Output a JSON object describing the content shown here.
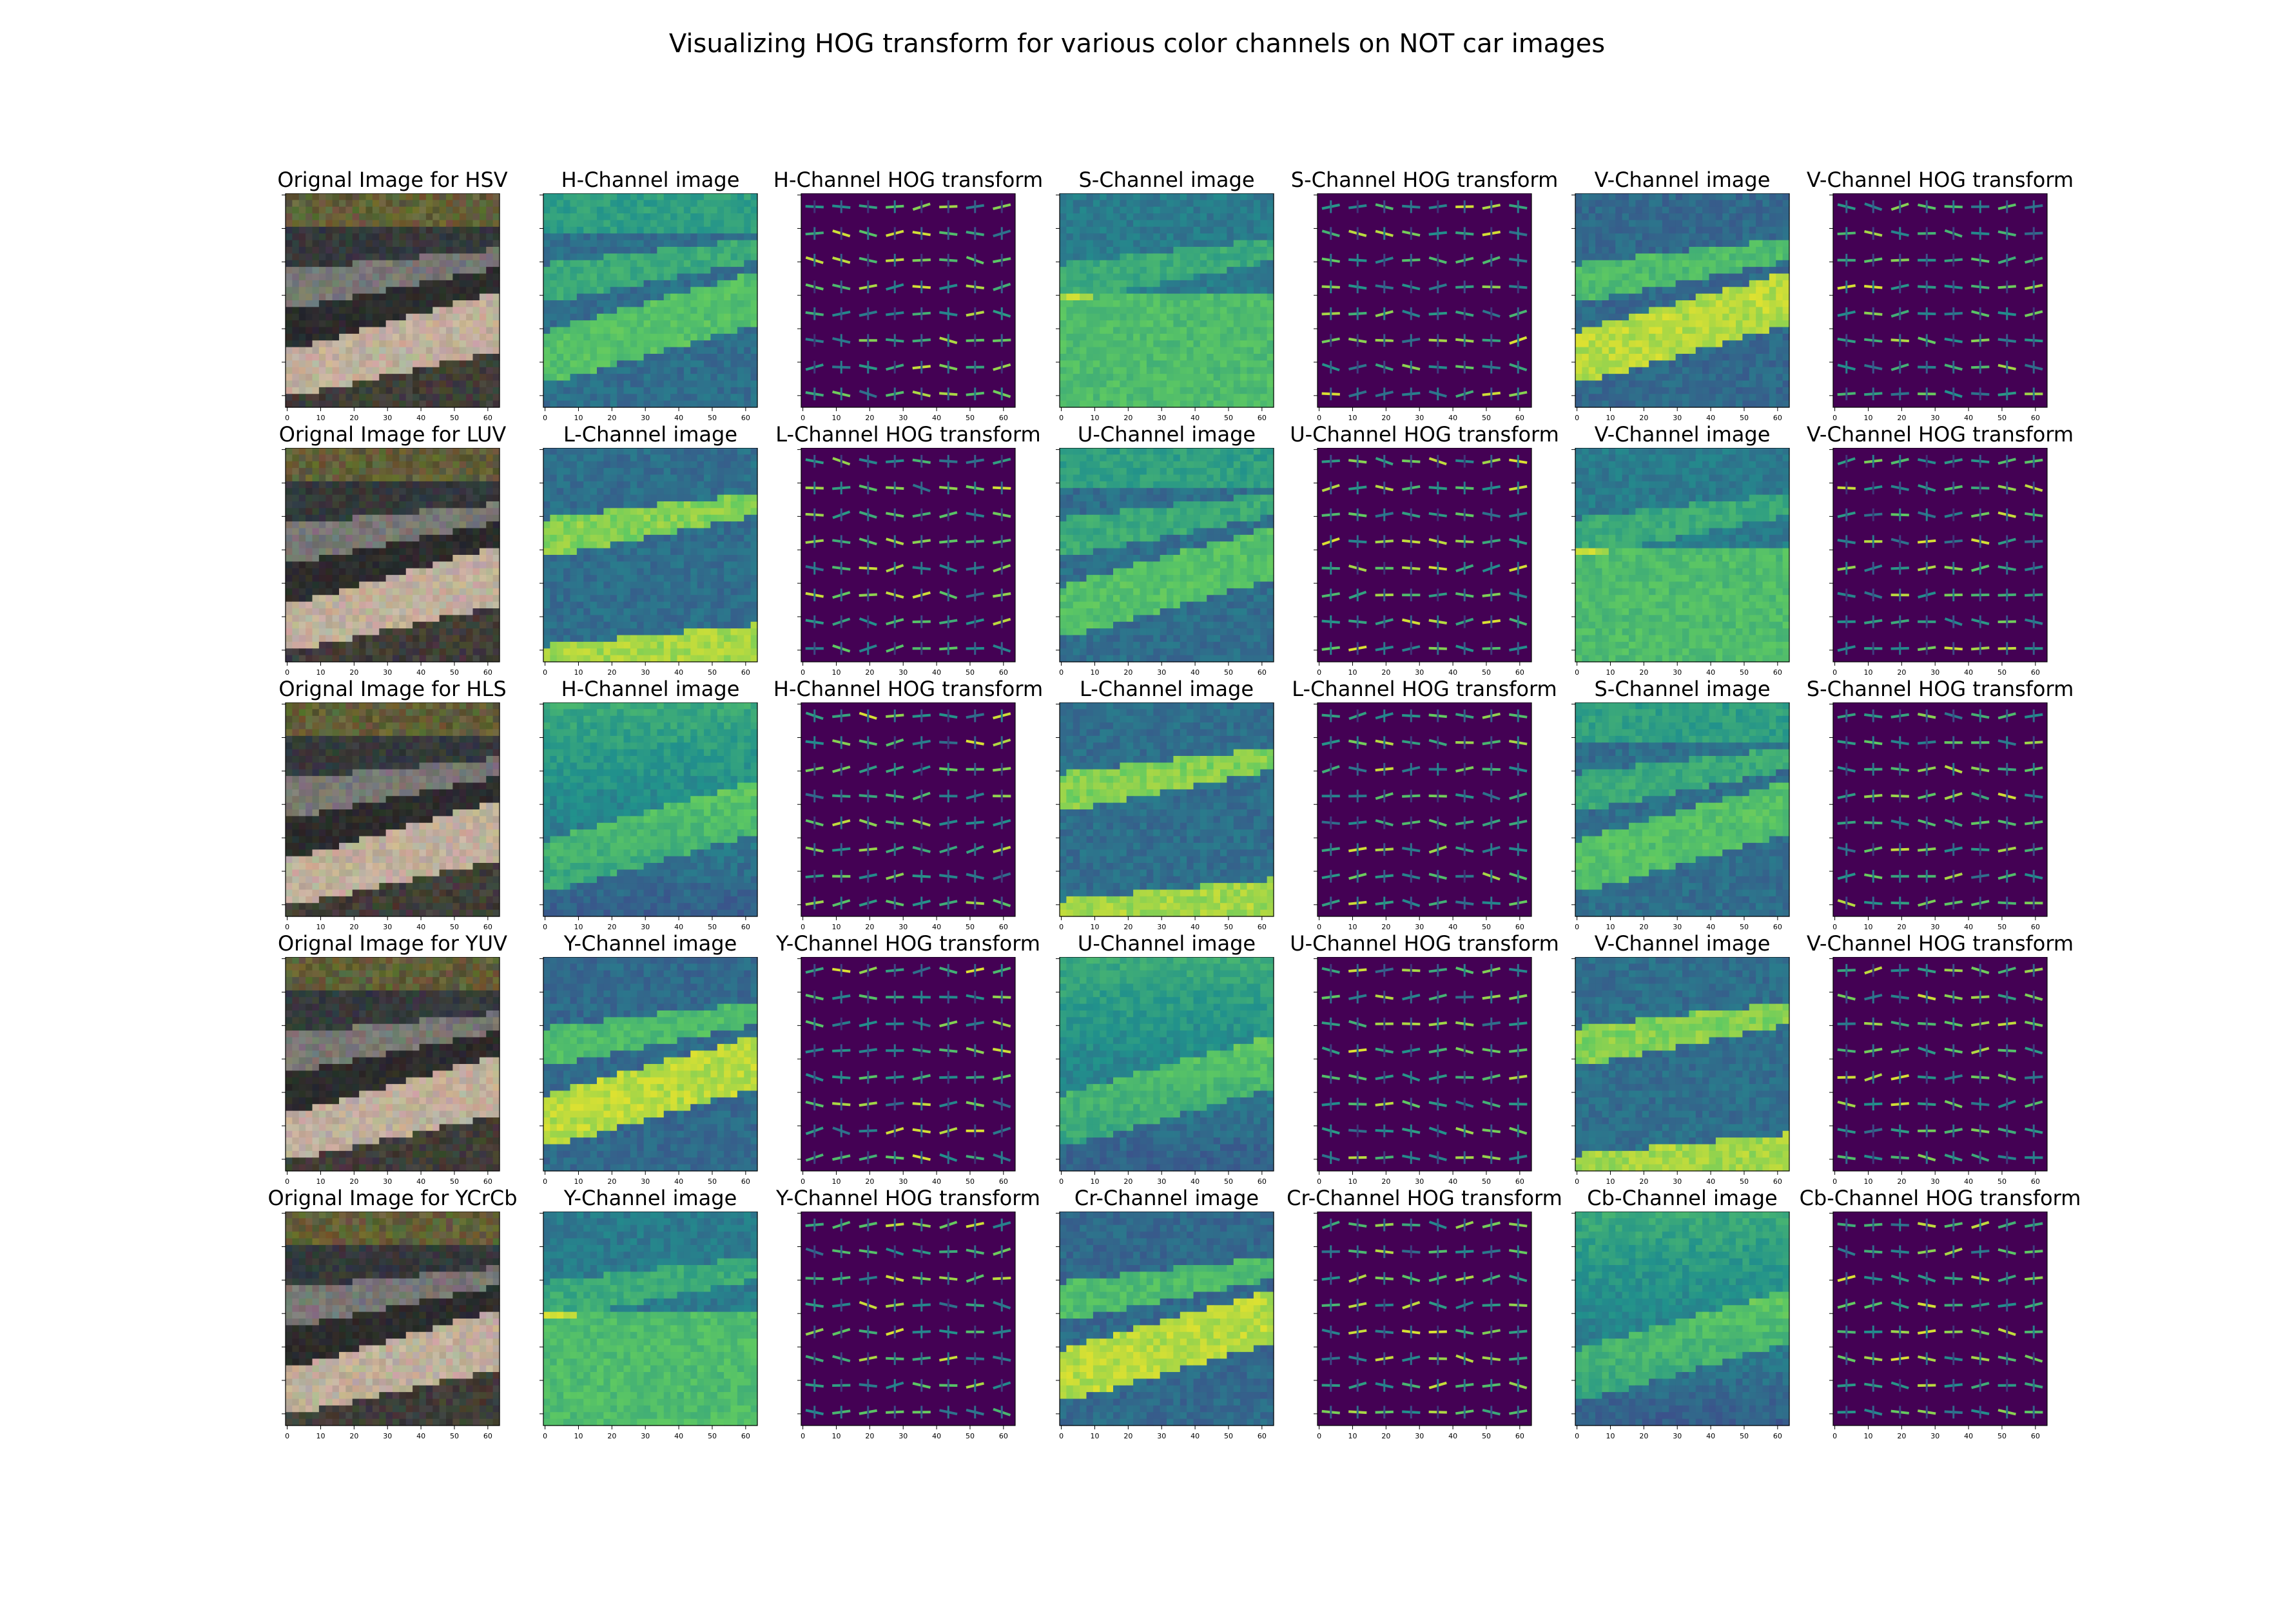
{
  "figure": {
    "title": "Visualizing HOG transform for various color channels on NOT car images"
  },
  "axes": {
    "ticks": [
      "0",
      "10",
      "20",
      "30",
      "40",
      "50",
      "60"
    ],
    "tick_values": [
      0,
      10,
      20,
      30,
      40,
      50,
      60
    ],
    "limits": [
      0,
      64
    ],
    "grid": false
  },
  "colormap": [
    "#440154",
    "#3b528b",
    "#21918c",
    "#5ec962",
    "#fde725"
  ],
  "chart_data": {
    "type": "heatmap",
    "rows": [
      {
        "space": "HSV",
        "panels": [
          {
            "kind": "orig",
            "title": "Orignal Image for HSV"
          },
          {
            "kind": "channel",
            "title": "H-Channel image"
          },
          {
            "kind": "hog",
            "title": "H-Channel HOG transform"
          },
          {
            "kind": "channel",
            "title": "S-Channel image"
          },
          {
            "kind": "hog",
            "title": "S-Channel HOG transform"
          },
          {
            "kind": "channel",
            "title": "V-Channel image"
          },
          {
            "kind": "hog",
            "title": "V-Channel HOG transform"
          }
        ]
      },
      {
        "space": "LUV",
        "panels": [
          {
            "kind": "orig",
            "title": "Orignal Image for LUV"
          },
          {
            "kind": "channel",
            "title": "L-Channel image"
          },
          {
            "kind": "hog",
            "title": "L-Channel HOG transform"
          },
          {
            "kind": "channel",
            "title": "U-Channel image"
          },
          {
            "kind": "hog",
            "title": "U-Channel HOG transform"
          },
          {
            "kind": "channel",
            "title": "V-Channel image"
          },
          {
            "kind": "hog",
            "title": "V-Channel HOG transform"
          }
        ]
      },
      {
        "space": "HLS",
        "panels": [
          {
            "kind": "orig",
            "title": "Orignal Image for HLS"
          },
          {
            "kind": "channel",
            "title": "H-Channel image"
          },
          {
            "kind": "hog",
            "title": "H-Channel HOG transform"
          },
          {
            "kind": "channel",
            "title": "L-Channel image"
          },
          {
            "kind": "hog",
            "title": "L-Channel HOG transform"
          },
          {
            "kind": "channel",
            "title": "S-Channel image"
          },
          {
            "kind": "hog",
            "title": "S-Channel HOG transform"
          }
        ]
      },
      {
        "space": "YUV",
        "panels": [
          {
            "kind": "orig",
            "title": "Orignal Image for YUV"
          },
          {
            "kind": "channel",
            "title": "Y-Channel image"
          },
          {
            "kind": "hog",
            "title": "Y-Channel HOG transform"
          },
          {
            "kind": "channel",
            "title": "U-Channel image"
          },
          {
            "kind": "hog",
            "title": "U-Channel HOG transform"
          },
          {
            "kind": "channel",
            "title": "V-Channel image"
          },
          {
            "kind": "hog",
            "title": "V-Channel HOG transform"
          }
        ]
      },
      {
        "space": "YCrCb",
        "panels": [
          {
            "kind": "orig",
            "title": "Orignal Image for YCrCb"
          },
          {
            "kind": "channel",
            "title": "Y-Channel image"
          },
          {
            "kind": "hog",
            "title": "Y-Channel HOG transform"
          },
          {
            "kind": "channel",
            "title": "Cr-Channel image"
          },
          {
            "kind": "hog",
            "title": "Cr-Channel HOG transform"
          },
          {
            "kind": "channel",
            "title": "Cb-Channel image"
          },
          {
            "kind": "hog",
            "title": "Cb-Channel HOG transform"
          }
        ]
      }
    ]
  }
}
